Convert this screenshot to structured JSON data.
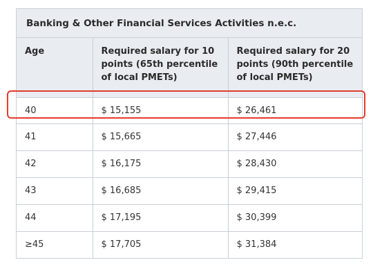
{
  "table": {
    "title": "Banking & Other Financial Services Activities n.e.c.",
    "headers": [
      "Age",
      "Required salary for 10 points (65th percentile of local PMETs)",
      "Required salary for 20 points (90th percentile of local PMETs)"
    ],
    "rows": [
      [
        "40",
        "$ 15,155",
        "$ 26,461"
      ],
      [
        "41",
        "$ 15,665",
        "$ 27,446"
      ],
      [
        "42",
        "$ 16,175",
        "$ 28,430"
      ],
      [
        "43",
        "$ 16,685",
        "$ 29,415"
      ],
      [
        "44",
        "$ 17,195",
        "$ 30,399"
      ],
      [
        "≥45",
        "$ 17,705",
        "$ 31,384"
      ]
    ],
    "highlighted_row": "40"
  },
  "colors": {
    "header_bg": "#e9edf2",
    "border": "#c9ced4",
    "highlight": "#e53a2c"
  }
}
